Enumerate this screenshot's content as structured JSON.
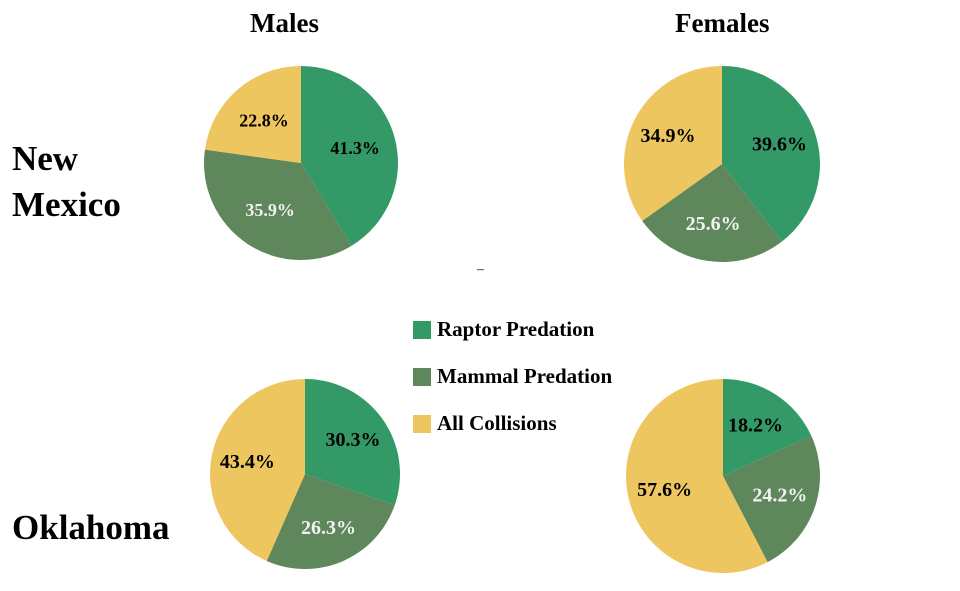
{
  "colors": {
    "raptor": "#339966",
    "mammal": "#5E875C",
    "collisions": "#EEC660",
    "label_dark": "#000000",
    "label_light": "#F2F2F2"
  },
  "columns": [
    "Males",
    "Females"
  ],
  "rows": [
    "New\nMexico",
    "Oklahoma"
  ],
  "legend": [
    "Raptor Predation",
    "Mammal Predation",
    "All Collisions"
  ],
  "dash": "–",
  "chart_data": [
    {
      "type": "pie",
      "categories": [
        "Raptor Predation",
        "Mammal Predation",
        "All Collisions"
      ],
      "values": [
        41.3,
        35.9,
        22.8
      ],
      "labels": [
        "41.3%",
        "35.9%",
        "22.8%"
      ]
    },
    {
      "type": "pie",
      "categories": [
        "Raptor Predation",
        "Mammal Predation",
        "All Collisions"
      ],
      "values": [
        39.6,
        25.6,
        34.9
      ],
      "labels": [
        "39.6%",
        "25.6%",
        "34.9%"
      ]
    },
    {
      "type": "pie",
      "categories": [
        "Raptor Predation",
        "Mammal Predation",
        "All Collisions"
      ],
      "values": [
        30.3,
        26.3,
        43.4
      ],
      "labels": [
        "30.3%",
        "26.3%",
        "43.4%"
      ]
    },
    {
      "type": "pie",
      "categories": [
        "Raptor Predation",
        "Mammal Predation",
        "All Collisions"
      ],
      "values": [
        18.2,
        24.2,
        57.6
      ],
      "labels": [
        "18.2%",
        "24.2%",
        "57.6%"
      ]
    }
  ]
}
